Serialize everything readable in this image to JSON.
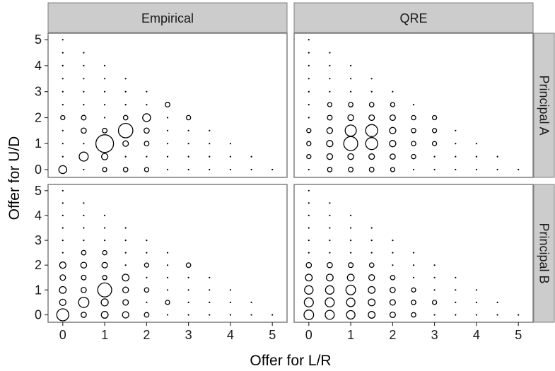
{
  "chart_data": {
    "type": "scatter",
    "xlabel": "Offer for L/R",
    "ylabel": "Offer for U/D",
    "xlim": [
      -0.35,
      5.35
    ],
    "ylim": [
      -0.3,
      5.25
    ],
    "x_ticks": [
      "0",
      "1",
      "2",
      "3",
      "4",
      "5"
    ],
    "y_ticks": [
      "0",
      "1",
      "2",
      "3",
      "4",
      "5"
    ],
    "columns": [
      "Empirical",
      "QRE"
    ],
    "rows": [
      "Principal A",
      "Principal B"
    ],
    "grid": false,
    "point_marker": "open circle sized by frequency",
    "panels": [
      {
        "column": "Empirical",
        "row": "Principal A",
        "points": [
          {
            "x": 0,
            "y": 0,
            "size": 0.35
          },
          {
            "x": 0.5,
            "y": 0.5,
            "size": 0.42
          },
          {
            "x": 1,
            "y": 1,
            "size": 0.95
          },
          {
            "x": 1.5,
            "y": 1.5,
            "size": 0.75
          },
          {
            "x": 2,
            "y": 2,
            "size": 0.35
          },
          {
            "x": 1,
            "y": 0.5,
            "size": 0.25
          },
          {
            "x": 1.5,
            "y": 1,
            "size": 0.2
          },
          {
            "x": 0.5,
            "y": 1.5,
            "size": 0.18
          },
          {
            "x": 0.5,
            "y": 2,
            "size": 0.15
          },
          {
            "x": 1,
            "y": 1.5,
            "size": 0.15
          },
          {
            "x": 2,
            "y": 1.5,
            "size": 0.18
          },
          {
            "x": 2,
            "y": 1,
            "size": 0.15
          },
          {
            "x": 2.5,
            "y": 2.5,
            "size": 0.15
          },
          {
            "x": 3,
            "y": 2,
            "size": 0.13
          },
          {
            "x": 1.5,
            "y": 2,
            "size": 0.14
          },
          {
            "x": 0,
            "y": 2,
            "size": 0.12
          },
          {
            "x": 1.5,
            "y": 0,
            "size": 0.14
          },
          {
            "x": 2,
            "y": 0,
            "size": 0.12
          },
          {
            "x": 1,
            "y": 0,
            "size": 0.12
          }
        ]
      },
      {
        "column": "QRE",
        "row": "Principal A",
        "points": [
          {
            "x": 1,
            "y": 1,
            "size": 0.72
          },
          {
            "x": 1.5,
            "y": 1,
            "size": 0.6
          },
          {
            "x": 1,
            "y": 1.5,
            "size": 0.55
          },
          {
            "x": 1.5,
            "y": 1.5,
            "size": 0.6
          },
          {
            "x": 0.5,
            "y": 1,
            "size": 0.25
          },
          {
            "x": 0.5,
            "y": 1.5,
            "size": 0.22
          },
          {
            "x": 0.5,
            "y": 0.5,
            "size": 0.22
          },
          {
            "x": 1,
            "y": 0.5,
            "size": 0.22
          },
          {
            "x": 1.5,
            "y": 0.5,
            "size": 0.2
          },
          {
            "x": 2,
            "y": 1,
            "size": 0.25
          },
          {
            "x": 2,
            "y": 1.5,
            "size": 0.25
          },
          {
            "x": 2,
            "y": 2,
            "size": 0.2
          },
          {
            "x": 1,
            "y": 2,
            "size": 0.22
          },
          {
            "x": 1.5,
            "y": 2,
            "size": 0.2
          },
          {
            "x": 0.5,
            "y": 2,
            "size": 0.16
          },
          {
            "x": 2,
            "y": 0.5,
            "size": 0.18
          },
          {
            "x": 1,
            "y": 0,
            "size": 0.15
          },
          {
            "x": 1.5,
            "y": 0,
            "size": 0.15
          },
          {
            "x": 0.5,
            "y": 0,
            "size": 0.14
          },
          {
            "x": 2.5,
            "y": 1,
            "size": 0.14
          },
          {
            "x": 2.5,
            "y": 1.5,
            "size": 0.14
          },
          {
            "x": 2.5,
            "y": 2,
            "size": 0.13
          },
          {
            "x": 2.5,
            "y": 0.5,
            "size": 0.13
          },
          {
            "x": 3,
            "y": 1,
            "size": 0.12
          },
          {
            "x": 3,
            "y": 1.5,
            "size": 0.12
          },
          {
            "x": 3,
            "y": 2,
            "size": 0.12
          },
          {
            "x": 0,
            "y": 1,
            "size": 0.12
          },
          {
            "x": 0,
            "y": 0.5,
            "size": 0.12
          },
          {
            "x": 0,
            "y": 1.5,
            "size": 0.12
          },
          {
            "x": 2,
            "y": 0,
            "size": 0.12
          },
          {
            "x": 1,
            "y": 2.5,
            "size": 0.14
          },
          {
            "x": 1.5,
            "y": 2.5,
            "size": 0.14
          },
          {
            "x": 0.5,
            "y": 2.5,
            "size": 0.12
          },
          {
            "x": 2,
            "y": 2.5,
            "size": 0.12
          }
        ]
      },
      {
        "column": "Empirical",
        "row": "Principal B",
        "points": [
          {
            "x": 0,
            "y": 0,
            "size": 0.6
          },
          {
            "x": 0.5,
            "y": 0.5,
            "size": 0.5
          },
          {
            "x": 1,
            "y": 1,
            "size": 0.72
          },
          {
            "x": 1,
            "y": 0.5,
            "size": 0.3
          },
          {
            "x": 1,
            "y": 0,
            "size": 0.28
          },
          {
            "x": 0,
            "y": 0.5,
            "size": 0.25
          },
          {
            "x": 0,
            "y": 1,
            "size": 0.28
          },
          {
            "x": 0,
            "y": 1.5,
            "size": 0.2
          },
          {
            "x": 0,
            "y": 2,
            "size": 0.25
          },
          {
            "x": 0.5,
            "y": 0,
            "size": 0.18
          },
          {
            "x": 0.5,
            "y": 1,
            "size": 0.18
          },
          {
            "x": 0.5,
            "y": 1.5,
            "size": 0.15
          },
          {
            "x": 0.5,
            "y": 2,
            "size": 0.22
          },
          {
            "x": 1,
            "y": 2,
            "size": 0.2
          },
          {
            "x": 1.5,
            "y": 1.5,
            "size": 0.28
          },
          {
            "x": 1.5,
            "y": 1,
            "size": 0.22
          },
          {
            "x": 1.5,
            "y": 0.5,
            "size": 0.2
          },
          {
            "x": 1.5,
            "y": 0,
            "size": 0.25
          },
          {
            "x": 2,
            "y": 0,
            "size": 0.15
          },
          {
            "x": 2,
            "y": 1,
            "size": 0.14
          },
          {
            "x": 2,
            "y": 2,
            "size": 0.12
          },
          {
            "x": 3,
            "y": 2,
            "size": 0.14
          },
          {
            "x": 2.5,
            "y": 0.5,
            "size": 0.12
          },
          {
            "x": 1,
            "y": 1.5,
            "size": 0.13
          },
          {
            "x": 0.5,
            "y": 2.5,
            "size": 0.14
          },
          {
            "x": 1,
            "y": 2.5,
            "size": 0.13
          }
        ]
      },
      {
        "column": "QRE",
        "row": "Principal B",
        "points": [
          {
            "x": 0,
            "y": 0,
            "size": 0.45
          },
          {
            "x": 0.5,
            "y": 0,
            "size": 0.42
          },
          {
            "x": 0,
            "y": 0.5,
            "size": 0.42
          },
          {
            "x": 0.5,
            "y": 0.5,
            "size": 0.42
          },
          {
            "x": 1,
            "y": 0,
            "size": 0.38
          },
          {
            "x": 1,
            "y": 0.5,
            "size": 0.38
          },
          {
            "x": 0,
            "y": 1,
            "size": 0.38
          },
          {
            "x": 0.5,
            "y": 1,
            "size": 0.38
          },
          {
            "x": 1,
            "y": 1,
            "size": 0.45
          },
          {
            "x": 0,
            "y": 1.5,
            "size": 0.28
          },
          {
            "x": 0.5,
            "y": 1.5,
            "size": 0.28
          },
          {
            "x": 1,
            "y": 1.5,
            "size": 0.28
          },
          {
            "x": 1.5,
            "y": 0,
            "size": 0.28
          },
          {
            "x": 1.5,
            "y": 0.5,
            "size": 0.28
          },
          {
            "x": 1.5,
            "y": 1,
            "size": 0.28
          },
          {
            "x": 1.5,
            "y": 1.5,
            "size": 0.22
          },
          {
            "x": 2,
            "y": 0,
            "size": 0.2
          },
          {
            "x": 2,
            "y": 0.5,
            "size": 0.2
          },
          {
            "x": 2,
            "y": 1,
            "size": 0.18
          },
          {
            "x": 0,
            "y": 2,
            "size": 0.18
          },
          {
            "x": 0.5,
            "y": 2,
            "size": 0.18
          },
          {
            "x": 1,
            "y": 2,
            "size": 0.16
          },
          {
            "x": 2.5,
            "y": 0,
            "size": 0.14
          },
          {
            "x": 2.5,
            "y": 0.5,
            "size": 0.14
          },
          {
            "x": 3,
            "y": 0.5,
            "size": 0.12
          },
          {
            "x": 2,
            "y": 1.5,
            "size": 0.14
          },
          {
            "x": 1.5,
            "y": 2,
            "size": 0.14
          },
          {
            "x": 2.5,
            "y": 1,
            "size": 0.12
          }
        ]
      }
    ]
  }
}
